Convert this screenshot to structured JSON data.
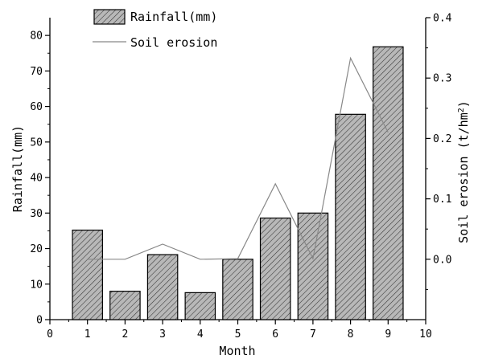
{
  "chart_data": {
    "type": "bar",
    "categories": [
      1,
      2,
      3,
      4,
      5,
      6,
      7,
      8,
      9
    ],
    "xlabel": "Month",
    "xlim": [
      0,
      10
    ],
    "x_ticks": [
      0,
      1,
      2,
      3,
      4,
      5,
      6,
      7,
      8,
      9,
      10
    ],
    "ylabel_left": "Rainfall(mm)",
    "ylim_left": [
      0,
      85
    ],
    "y_ticks_left": [
      0,
      10,
      20,
      30,
      40,
      50,
      60,
      70,
      80
    ],
    "ylabel_right_prefix": "Soil erosion (t/hm",
    "ylabel_right_sup": "2",
    "ylabel_right_suffix": ")",
    "ylim_right": [
      -0.1,
      0.4
    ],
    "y_ticks_right": [
      "0.0",
      "0.1",
      "0.2",
      "0.3",
      "0.4"
    ],
    "grid": false,
    "legend_position": "top-left",
    "series": [
      {
        "name": "Rainfall(mm)",
        "kind": "bar",
        "axis": "left",
        "fill": "#b8b8b8",
        "pattern": "diagonal-hatch",
        "values": [
          25.2,
          8.0,
          18.3,
          7.6,
          17.0,
          28.6,
          30.0,
          57.8,
          76.8
        ]
      },
      {
        "name": "Soil erosion",
        "kind": "line",
        "axis": "right",
        "color": "#888888",
        "values": [
          0.0,
          0.0,
          0.025,
          0.0,
          0.001,
          0.125,
          0.001,
          0.333,
          0.21
        ]
      }
    ]
  }
}
